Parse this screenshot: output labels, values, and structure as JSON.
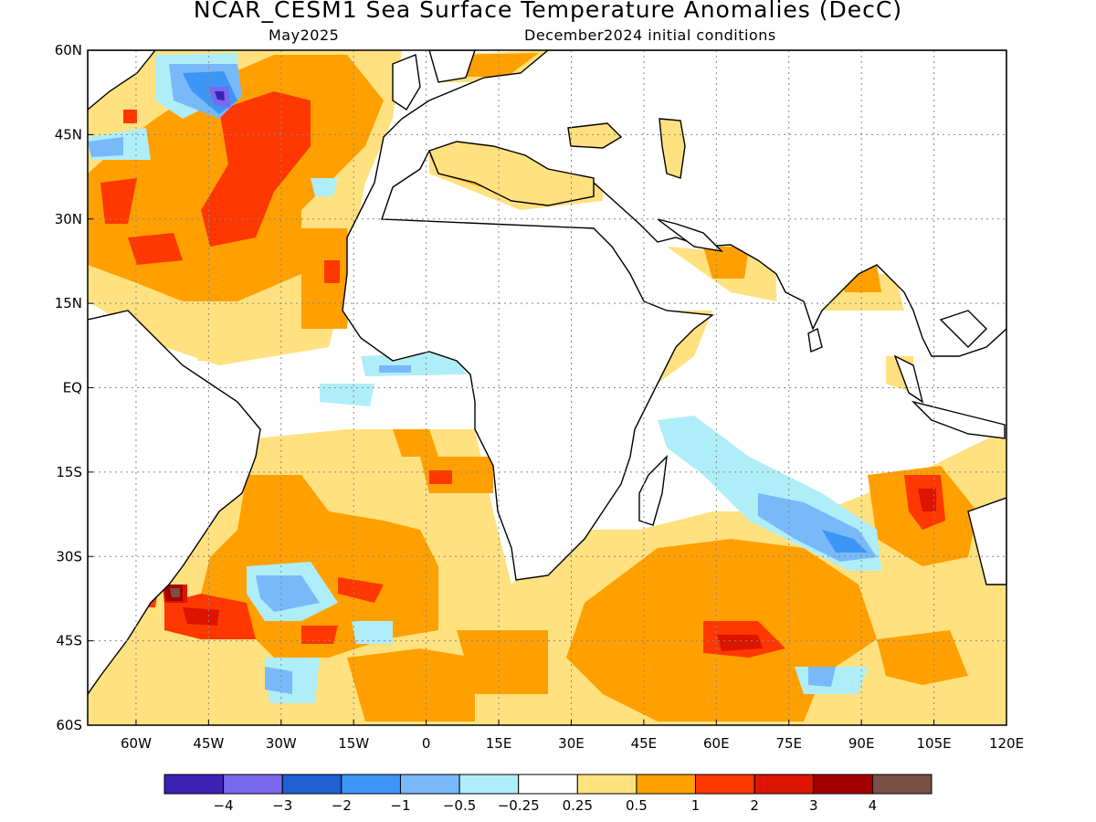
{
  "title": "NCAR_CESM1 Sea Surface Temperature Anomalies (DecC)",
  "subtitle_left": "May2025",
  "subtitle_right": "December2024 initial conditions",
  "map": {
    "lon_range": [
      -70,
      120
    ],
    "lat_range": [
      -60,
      60
    ],
    "lat_ticks": [
      {
        "value": 60,
        "label": "60N"
      },
      {
        "value": 45,
        "label": "45N"
      },
      {
        "value": 30,
        "label": "30N"
      },
      {
        "value": 15,
        "label": "15N"
      },
      {
        "value": 0,
        "label": "EQ"
      },
      {
        "value": -15,
        "label": "15S"
      },
      {
        "value": -30,
        "label": "30S"
      },
      {
        "value": -45,
        "label": "45S"
      },
      {
        "value": -60,
        "label": "60S"
      }
    ],
    "lon_ticks": [
      {
        "value": -60,
        "label": "60W"
      },
      {
        "value": -45,
        "label": "45W"
      },
      {
        "value": -30,
        "label": "30W"
      },
      {
        "value": -15,
        "label": "15W"
      },
      {
        "value": 0,
        "label": "0"
      },
      {
        "value": 15,
        "label": "15E"
      },
      {
        "value": 30,
        "label": "30E"
      },
      {
        "value": 45,
        "label": "45E"
      },
      {
        "value": 60,
        "label": "60E"
      },
      {
        "value": 75,
        "label": "75E"
      },
      {
        "value": 90,
        "label": "90E"
      },
      {
        "value": 105,
        "label": "105E"
      },
      {
        "value": 120,
        "label": "120E"
      }
    ],
    "gridlines": "dotted"
  },
  "colorbar": {
    "colors": [
      "#3c22b4",
      "#7b68ee",
      "#1e5fd2",
      "#3c96f5",
      "#78b9fa",
      "#afeef8",
      "#ffffff",
      "#ffe17f",
      "#ffa000",
      "#ff3700",
      "#dc1400",
      "#a50000",
      "#785044"
    ],
    "labels": [
      "−4",
      "−3",
      "−2",
      "−1",
      "−0.5",
      "−0.25",
      "0.25",
      "0.5",
      "1",
      "2",
      "3",
      "4"
    ]
  },
  "legend_colors": {
    "land_outline": "#000000",
    "land_fill": "#ffffff",
    "ocean_neutral": "#ffffff"
  }
}
